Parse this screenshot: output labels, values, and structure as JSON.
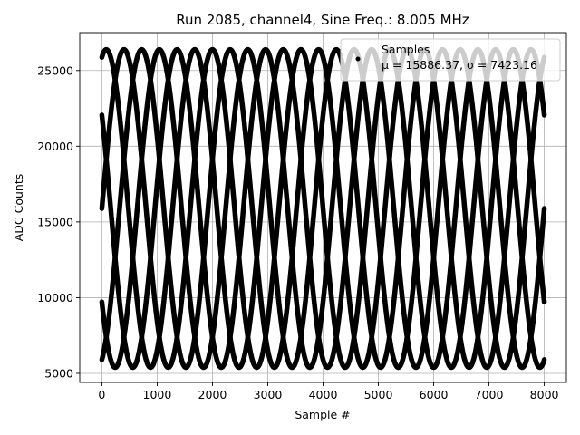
{
  "chart_data": {
    "type": "scatter",
    "title": "Run 2085, channel4, Sine Freq.: 8.005 MHz",
    "xlabel": "Sample #",
    "ylabel": "ADC Counts",
    "xlim": [
      -400,
      8400
    ],
    "ylim": [
      4400,
      27500
    ],
    "xticks": [
      0,
      1000,
      2000,
      3000,
      4000,
      5000,
      6000,
      7000,
      8000
    ],
    "yticks": [
      5000,
      10000,
      15000,
      20000,
      25000
    ],
    "grid": true,
    "legend": {
      "placement": "top-right",
      "entries": [
        "Samples",
        "μ = 15886.37, σ = 7423.16"
      ]
    },
    "series": [
      {
        "name": "Samples",
        "color": "#000000",
        "marker": "dot",
        "sine_model": {
          "mean": 15886.37,
          "amplitude": 10500,
          "period_samples": 1600,
          "phases_deg": [
            72,
            0,
            288,
            216,
            144
          ]
        },
        "x_range": [
          0,
          8000
        ]
      }
    ]
  }
}
